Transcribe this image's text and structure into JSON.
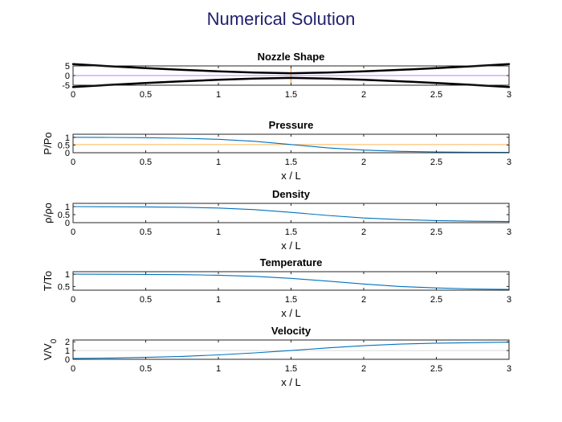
{
  "figure_title": "Numerical Solution",
  "colors": {
    "title": "#1f1f6e",
    "series": "#0072bd",
    "throat_marker": "#ff8c00",
    "centerline": "#9b30ff",
    "nozzle_wall": "#000000"
  },
  "chart_data": [
    {
      "type": "line",
      "title": "Nozzle Shape",
      "xlabel": "",
      "ylabel": "",
      "xlim": [
        0,
        3
      ],
      "ylim": [
        -5,
        5
      ],
      "xticks": [
        "0",
        "0.5",
        "1",
        "1.5",
        "2",
        "2.5",
        "3"
      ],
      "yticks": [
        "-5",
        "0",
        "5"
      ],
      "x": [
        0,
        0.25,
        0.5,
        0.75,
        1.0,
        1.25,
        1.5,
        1.75,
        2.0,
        2.25,
        2.5,
        2.75,
        3.0
      ],
      "series": [
        {
          "values": [
            5.95,
            4.85,
            3.85,
            2.95,
            2.2,
            1.6,
            1.2,
            1.6,
            2.2,
            2.95,
            3.85,
            4.85,
            5.95
          ]
        },
        {
          "values": [
            -5.95,
            -4.85,
            -3.85,
            -2.95,
            -2.2,
            -1.6,
            -1.2,
            -1.6,
            -2.2,
            -2.95,
            -3.85,
            -4.85,
            -5.95
          ]
        }
      ],
      "reference_lines": {
        "horizontal": 0,
        "vertical": 1.5
      }
    },
    {
      "type": "line",
      "title": "Pressure",
      "xlabel": "x / L",
      "ylabel": "P/Po",
      "xlim": [
        0,
        3
      ],
      "ylim": [
        0,
        1.2
      ],
      "xticks": [
        "0",
        "0.5",
        "1",
        "1.5",
        "2",
        "2.5",
        "3"
      ],
      "yticks": [
        "0",
        "0.5",
        "1"
      ],
      "x": [
        0,
        0.25,
        0.5,
        0.75,
        1.0,
        1.25,
        1.5,
        1.75,
        2.0,
        2.25,
        2.5,
        2.75,
        3.0
      ],
      "series": [
        {
          "values": [
            1.0,
            0.99,
            0.975,
            0.94,
            0.87,
            0.74,
            0.53,
            0.32,
            0.17,
            0.09,
            0.05,
            0.03,
            0.02
          ]
        }
      ],
      "reference_lines": {
        "horizontal": 0.53
      }
    },
    {
      "type": "line",
      "title": "Density",
      "xlabel": "x / L",
      "ylabel": "ρ/ρo",
      "xlim": [
        0,
        3
      ],
      "ylim": [
        0,
        1.2
      ],
      "xticks": [
        "0",
        "0.5",
        "1",
        "1.5",
        "2",
        "2.5",
        "3"
      ],
      "yticks": [
        "0",
        "0.5",
        "1"
      ],
      "x": [
        0,
        0.25,
        0.5,
        0.75,
        1.0,
        1.25,
        1.5,
        1.75,
        2.0,
        2.25,
        2.5,
        2.75,
        3.0
      ],
      "series": [
        {
          "values": [
            1.0,
            0.99,
            0.98,
            0.96,
            0.91,
            0.81,
            0.64,
            0.45,
            0.29,
            0.19,
            0.13,
            0.09,
            0.07
          ]
        }
      ]
    },
    {
      "type": "line",
      "title": "Temperature",
      "xlabel": "x / L",
      "ylabel": "T/To",
      "xlim": [
        0,
        3
      ],
      "ylim": [
        0.35,
        1.1
      ],
      "xticks": [
        "0",
        "0.5",
        "1",
        "1.5",
        "2",
        "2.5",
        "3"
      ],
      "yticks": [
        "0.5",
        "1"
      ],
      "x": [
        0,
        0.25,
        0.5,
        0.75,
        1.0,
        1.25,
        1.5,
        1.75,
        2.0,
        2.25,
        2.5,
        2.75,
        3.0
      ],
      "series": [
        {
          "values": [
            1.0,
            0.997,
            0.99,
            0.98,
            0.955,
            0.91,
            0.83,
            0.72,
            0.6,
            0.5,
            0.44,
            0.4,
            0.38
          ]
        }
      ]
    },
    {
      "type": "line",
      "title": "Velocity",
      "xlabel": "x / L",
      "ylabel": "V/V",
      "ylabel_sub": "0",
      "xlim": [
        0,
        3
      ],
      "ylim": [
        0,
        2.2
      ],
      "xticks": [
        "0",
        "0.5",
        "1",
        "1.5",
        "2",
        "2.5",
        "3"
      ],
      "yticks": [
        "0",
        "1",
        "2"
      ],
      "x": [
        0,
        0.25,
        0.5,
        0.75,
        1.0,
        1.25,
        1.5,
        1.75,
        2.0,
        2.25,
        2.5,
        2.75,
        3.0
      ],
      "series": [
        {
          "values": [
            0.1,
            0.15,
            0.22,
            0.33,
            0.5,
            0.73,
            1.0,
            1.3,
            1.55,
            1.73,
            1.84,
            1.9,
            1.95
          ]
        }
      ],
      "reference_lines": {
        "horizontal": 1.0
      }
    }
  ]
}
